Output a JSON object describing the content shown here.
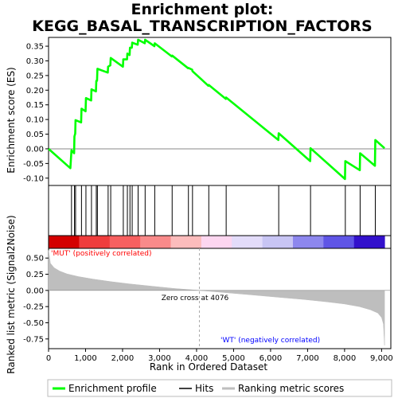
{
  "chart_data": {
    "type": "line",
    "title_line1": "Enrichment plot:",
    "title_line2": "KEGG_BASAL_TRANSCRIPTION_FACTORS",
    "es_ylabel": "Enrichment score (ES)",
    "metric_ylabel": "Ranked list metric (Signal2Noise)",
    "xlabel": "Rank in Ordered Dataset",
    "xlim": [
      0,
      9250
    ],
    "x_ticks": [
      0,
      1000,
      2000,
      3000,
      4000,
      5000,
      6000,
      7000,
      8000,
      9000
    ],
    "x_tick_labels": [
      "0",
      "1,000",
      "2,000",
      "3,000",
      "4,000",
      "5,000",
      "6,000",
      "7,000",
      "8,000",
      "9,000"
    ],
    "es_ylim": [
      -0.125,
      0.38
    ],
    "es_ticks": [
      -0.1,
      -0.05,
      0.0,
      0.05,
      0.1,
      0.15,
      0.2,
      0.25,
      0.3,
      0.35
    ],
    "es_tick_labels": [
      "-0.10",
      "-0.05",
      "0.00",
      "0.05",
      "0.10",
      "0.15",
      "0.20",
      "0.25",
      "0.30",
      "0.35"
    ],
    "metric_ylim": [
      -0.9,
      0.65
    ],
    "metric_ticks": [
      -0.75,
      -0.5,
      -0.25,
      0.0,
      0.25,
      0.5
    ],
    "metric_tick_labels": [
      "-0.75",
      "-0.50",
      "-0.25",
      "0.00",
      "0.25",
      "0.50"
    ],
    "hits": [
      620,
      700,
      730,
      890,
      1010,
      1160,
      1290,
      1320,
      1610,
      1680,
      2020,
      2130,
      2200,
      2260,
      2420,
      2610,
      2870,
      3340,
      3780,
      3890,
      4330,
      4800,
      6220,
      7080,
      8020,
      8420,
      8830
    ],
    "enrichment_profile": {
      "x": [
        0,
        590,
        620,
        690,
        700,
        720,
        730,
        880,
        890,
        1000,
        1010,
        1150,
        1160,
        1280,
        1290,
        1310,
        1320,
        1600,
        1610,
        1670,
        1680,
        2010,
        2020,
        2120,
        2130,
        2190,
        2200,
        2250,
        2260,
        2410,
        2420,
        2600,
        2610,
        2860,
        2870,
        3330,
        3340,
        3770,
        3780,
        3880,
        3890,
        4320,
        4330,
        4790,
        4800,
        6210,
        6220,
        7070,
        7080,
        8010,
        8020,
        8410,
        8420,
        8820,
        8830,
        9080
      ],
      "y": [
        0.0,
        -0.066,
        -0.005,
        -0.015,
        0.042,
        0.052,
        0.098,
        0.09,
        0.137,
        0.128,
        0.173,
        0.165,
        0.203,
        0.196,
        0.232,
        0.232,
        0.273,
        0.26,
        0.28,
        0.285,
        0.31,
        0.28,
        0.305,
        0.305,
        0.325,
        0.32,
        0.345,
        0.345,
        0.362,
        0.355,
        0.372,
        0.36,
        0.372,
        0.35,
        0.36,
        0.315,
        0.318,
        0.275,
        0.276,
        0.27,
        0.265,
        0.215,
        0.218,
        0.17,
        0.175,
        0.03,
        0.053,
        -0.042,
        0.002,
        -0.103,
        -0.042,
        -0.073,
        -0.015,
        -0.058,
        0.03,
        0.002
      ]
    },
    "ranked_metric": {
      "x": [
        0,
        50,
        150,
        300,
        500,
        800,
        1200,
        1700,
        2200,
        2800,
        3400,
        4076,
        4800,
        5500,
        6200,
        6900,
        7500,
        8000,
        8400,
        8700,
        8900,
        9000,
        9050,
        9080
      ],
      "y": [
        0.62,
        0.42,
        0.35,
        0.3,
        0.255,
        0.215,
        0.175,
        0.135,
        0.1,
        0.065,
        0.03,
        0.0,
        -0.035,
        -0.07,
        -0.105,
        -0.14,
        -0.175,
        -0.21,
        -0.25,
        -0.3,
        -0.35,
        -0.42,
        -0.52,
        -0.85
      ]
    },
    "rank_bar_colors": [
      "#d40000",
      "#ef3d3d",
      "#f76060",
      "#f98a8a",
      "#fcbcbc",
      "#fdd6f0",
      "#e3dcfa",
      "#c8c5f4",
      "#8d87ee",
      "#5f55e6",
      "#3311cc"
    ],
    "zero_cross_label": "Zero cross at 4076",
    "zero_cross_x": 4076,
    "pos_label": "'MUT' (positively correlated)",
    "neg_label": "'WT' (negatively correlated)",
    "pos_color": "#ff0000",
    "neg_color": "#0000ff",
    "es_line_color": "#00ff00",
    "legend": [
      {
        "label": "Enrichment profile",
        "color": "#00ff00"
      },
      {
        "label": "Hits",
        "color": "#000000"
      },
      {
        "label": "Ranking metric scores",
        "color": "#bebebe"
      }
    ]
  }
}
